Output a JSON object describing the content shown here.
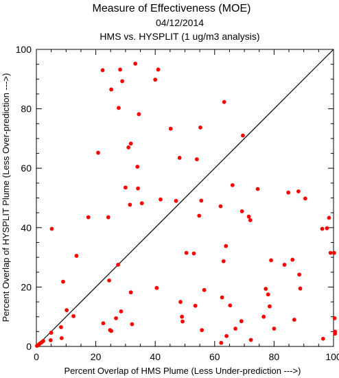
{
  "chart_data": {
    "type": "scatter",
    "title": "Measure of Effectiveness (MOE)",
    "subtitle_date": "04/12/2014",
    "subtitle_comparison": "HMS vs. HYSPLIT  (1 ug/m3 analysis)",
    "xlabel": "Percent Overlap of HMS Plume (Less Under-prediction --->)",
    "ylabel": "Percent Overlap of HYSPLIT Plume (Less Over-prediction --->)",
    "xlim": [
      0,
      100
    ],
    "ylim": [
      0,
      100
    ],
    "xticks": [
      "0",
      "20",
      "40",
      "60",
      "80",
      "100"
    ],
    "yticks": [
      "0",
      "20",
      "40",
      "60",
      "80",
      "100"
    ],
    "point_color": "#ff0000",
    "reference_line": [
      [
        0,
        0
      ],
      [
        100,
        100
      ]
    ],
    "points": [
      [
        0.2,
        0.2
      ],
      [
        0.5,
        0.4
      ],
      [
        0.8,
        0.6
      ],
      [
        1.2,
        1.0
      ],
      [
        1.8,
        1.4
      ],
      [
        2.3,
        1.8
      ],
      [
        4.8,
        2.1
      ],
      [
        5.0,
        4.6
      ],
      [
        5.2,
        39.6
      ],
      [
        8.5,
        2.8
      ],
      [
        8.3,
        6.5
      ],
      [
        9.0,
        21.8
      ],
      [
        10.2,
        12.2
      ],
      [
        12.5,
        10.2
      ],
      [
        13.5,
        30.5
      ],
      [
        17.5,
        43.5
      ],
      [
        20.8,
        65.2
      ],
      [
        22.3,
        93.0
      ],
      [
        22.5,
        7.8
      ],
      [
        24.2,
        43.5
      ],
      [
        24.5,
        22.2
      ],
      [
        24.8,
        5.5
      ],
      [
        25.2,
        5.2
      ],
      [
        25.2,
        86.5
      ],
      [
        26.8,
        9.5
      ],
      [
        27.5,
        27.5
      ],
      [
        27.7,
        80.3
      ],
      [
        28.2,
        93.2
      ],
      [
        28.5,
        11.8
      ],
      [
        28.9,
        89.3
      ],
      [
        30.0,
        53.5
      ],
      [
        31.0,
        67.0
      ],
      [
        31.5,
        47.7
      ],
      [
        31.8,
        18.2
      ],
      [
        31.8,
        68.3
      ],
      [
        32.2,
        7.5
      ],
      [
        33.3,
        95.2
      ],
      [
        34.0,
        60.5
      ],
      [
        34.2,
        53.2
      ],
      [
        34.5,
        78.2
      ],
      [
        35.5,
        48.2
      ],
      [
        40.0,
        89.8
      ],
      [
        40.5,
        19.7
      ],
      [
        41.0,
        93.2
      ],
      [
        41.8,
        49.5
      ],
      [
        45.2,
        73.3
      ],
      [
        47.0,
        49.0
      ],
      [
        48.2,
        63.5
      ],
      [
        48.5,
        15.0
      ],
      [
        49.0,
        10.0
      ],
      [
        49.2,
        8.4
      ],
      [
        50.5,
        31.5
      ],
      [
        53.0,
        31.3
      ],
      [
        53.5,
        13.7
      ],
      [
        54.0,
        63.0
      ],
      [
        54.8,
        44.0
      ],
      [
        55.2,
        73.7
      ],
      [
        55.5,
        49.1
      ],
      [
        55.7,
        5.5
      ],
      [
        56.5,
        19.0
      ],
      [
        62.0,
        47.2
      ],
      [
        62.2,
        1.2
      ],
      [
        62.5,
        16.5
      ],
      [
        63.0,
        28.7
      ],
      [
        63.2,
        82.3
      ],
      [
        63.8,
        33.8
      ],
      [
        64.0,
        3.5
      ],
      [
        65.2,
        13.8
      ],
      [
        66.0,
        54.3
      ],
      [
        67.0,
        6.0
      ],
      [
        69.0,
        8.5
      ],
      [
        69.2,
        45.5
      ],
      [
        69.5,
        71.0
      ],
      [
        71.5,
        43.7
      ],
      [
        72.0,
        42.5
      ],
      [
        72.2,
        2.2
      ],
      [
        74.5,
        53.0
      ],
      [
        76.5,
        10.0
      ],
      [
        77.2,
        19.4
      ],
      [
        78.0,
        17.5
      ],
      [
        78.5,
        13.5
      ],
      [
        79.0,
        29.0
      ],
      [
        80.0,
        6.0
      ],
      [
        83.5,
        27.5
      ],
      [
        84.8,
        51.8
      ],
      [
        86.2,
        29.2
      ],
      [
        86.8,
        9.0
      ],
      [
        88.2,
        52.2
      ],
      [
        88.5,
        24.2
      ],
      [
        88.8,
        19.5
      ],
      [
        90.5,
        49.8
      ],
      [
        96.2,
        39.6
      ],
      [
        96.5,
        2.6
      ],
      [
        97.8,
        39.8
      ],
      [
        98.5,
        43.3
      ],
      [
        99.0,
        31.5
      ],
      [
        100.2,
        31.5
      ],
      [
        100.4,
        9.5
      ],
      [
        100.5,
        5.0
      ],
      [
        100.5,
        4.3
      ]
    ]
  }
}
